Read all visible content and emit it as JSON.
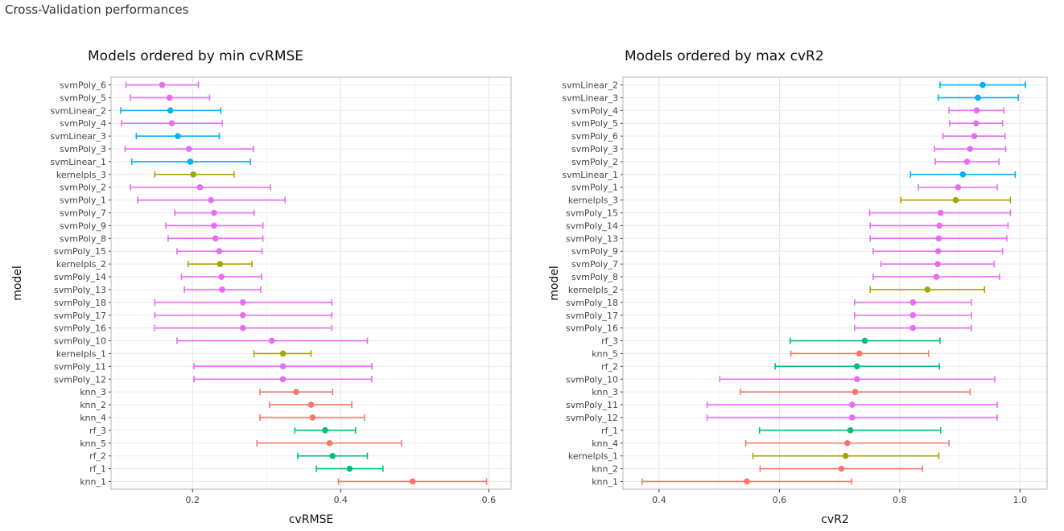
{
  "page": {
    "title": "Cross-Validation performances"
  },
  "chart_data": [
    {
      "type": "errorbar",
      "title": "Models ordered by min cvRMSE",
      "xlabel": "cvRMSE",
      "ylabel": "model",
      "xlim": [
        0.09,
        0.63
      ],
      "xticks": [
        0.2,
        0.4,
        0.6
      ],
      "grid": true,
      "legend": "none",
      "group_colors": {
        "svmPoly": "#E76BF3",
        "svmLinear": "#00B0F6",
        "kernelpls": "#A3A500",
        "rf": "#00BF7D",
        "knn": "#F8766D"
      },
      "points": [
        {
          "model": "svmPoly_6",
          "group": "svmPoly",
          "value": 0.159,
          "low": 0.11,
          "high": 0.208
        },
        {
          "model": "svmPoly_5",
          "group": "svmPoly",
          "value": 0.169,
          "low": 0.116,
          "high": 0.223
        },
        {
          "model": "svmLinear_2",
          "group": "svmLinear",
          "value": 0.17,
          "low": 0.103,
          "high": 0.238
        },
        {
          "model": "svmPoly_4",
          "group": "svmPoly",
          "value": 0.172,
          "low": 0.104,
          "high": 0.24
        },
        {
          "model": "svmLinear_3",
          "group": "svmLinear",
          "value": 0.18,
          "low": 0.124,
          "high": 0.236
        },
        {
          "model": "svmPoly_3",
          "group": "svmPoly",
          "value": 0.195,
          "low": 0.109,
          "high": 0.282
        },
        {
          "model": "svmLinear_1",
          "group": "svmLinear",
          "value": 0.197,
          "low": 0.118,
          "high": 0.278
        },
        {
          "model": "kernelpls_3",
          "group": "kernelpls",
          "value": 0.201,
          "low": 0.149,
          "high": 0.256
        },
        {
          "model": "svmPoly_2",
          "group": "svmPoly",
          "value": 0.21,
          "low": 0.116,
          "high": 0.305
        },
        {
          "model": "svmPoly_1",
          "group": "svmPoly",
          "value": 0.225,
          "low": 0.126,
          "high": 0.325
        },
        {
          "model": "svmPoly_7",
          "group": "svmPoly",
          "value": 0.229,
          "low": 0.176,
          "high": 0.283
        },
        {
          "model": "svmPoly_9",
          "group": "svmPoly",
          "value": 0.229,
          "low": 0.164,
          "high": 0.295
        },
        {
          "model": "svmPoly_8",
          "group": "svmPoly",
          "value": 0.231,
          "low": 0.167,
          "high": 0.295
        },
        {
          "model": "svmPoly_15",
          "group": "svmPoly",
          "value": 0.236,
          "low": 0.179,
          "high": 0.294
        },
        {
          "model": "kernelpls_2",
          "group": "kernelpls",
          "value": 0.237,
          "low": 0.194,
          "high": 0.28
        },
        {
          "model": "svmPoly_14",
          "group": "svmPoly",
          "value": 0.239,
          "low": 0.185,
          "high": 0.293
        },
        {
          "model": "svmPoly_13",
          "group": "svmPoly",
          "value": 0.24,
          "low": 0.189,
          "high": 0.292
        },
        {
          "model": "svmPoly_18",
          "group": "svmPoly",
          "value": 0.268,
          "low": 0.149,
          "high": 0.388
        },
        {
          "model": "svmPoly_17",
          "group": "svmPoly",
          "value": 0.268,
          "low": 0.149,
          "high": 0.388
        },
        {
          "model": "svmPoly_16",
          "group": "svmPoly",
          "value": 0.268,
          "low": 0.149,
          "high": 0.388
        },
        {
          "model": "svmPoly_10",
          "group": "svmPoly",
          "value": 0.307,
          "low": 0.179,
          "high": 0.436
        },
        {
          "model": "kernelpls_1",
          "group": "kernelpls",
          "value": 0.322,
          "low": 0.283,
          "high": 0.36
        },
        {
          "model": "svmPoly_11",
          "group": "svmPoly",
          "value": 0.322,
          "low": 0.202,
          "high": 0.442
        },
        {
          "model": "svmPoly_12",
          "group": "svmPoly",
          "value": 0.322,
          "low": 0.202,
          "high": 0.442
        },
        {
          "model": "knn_3",
          "group": "knn",
          "value": 0.34,
          "low": 0.291,
          "high": 0.389
        },
        {
          "model": "knn_2",
          "group": "knn",
          "value": 0.36,
          "low": 0.304,
          "high": 0.415
        },
        {
          "model": "knn_4",
          "group": "knn",
          "value": 0.362,
          "low": 0.291,
          "high": 0.432
        },
        {
          "model": "rf_3",
          "group": "rf",
          "value": 0.379,
          "low": 0.338,
          "high": 0.42
        },
        {
          "model": "knn_5",
          "group": "knn",
          "value": 0.385,
          "low": 0.287,
          "high": 0.482
        },
        {
          "model": "rf_2",
          "group": "rf",
          "value": 0.389,
          "low": 0.342,
          "high": 0.436
        },
        {
          "model": "rf_1",
          "group": "rf",
          "value": 0.412,
          "low": 0.367,
          "high": 0.457
        },
        {
          "model": "knn_1",
          "group": "knn",
          "value": 0.497,
          "low": 0.397,
          "high": 0.597
        }
      ]
    },
    {
      "type": "errorbar",
      "title": "Models ordered by max cvR2",
      "xlabel": "cvR2",
      "ylabel": "model",
      "xlim": [
        0.34,
        1.045
      ],
      "xticks": [
        0.4,
        0.6,
        0.8,
        1.0
      ],
      "grid": true,
      "legend": "none",
      "group_colors": {
        "svmPoly": "#E76BF3",
        "svmLinear": "#00B0F6",
        "kernelpls": "#A3A500",
        "rf": "#00BF7D",
        "knn": "#F8766D"
      },
      "points": [
        {
          "model": "svmLinear_2",
          "group": "svmLinear",
          "value": 0.938,
          "low": 0.867,
          "high": 1.009
        },
        {
          "model": "svmLinear_3",
          "group": "svmLinear",
          "value": 0.93,
          "low": 0.864,
          "high": 0.997
        },
        {
          "model": "svmPoly_4",
          "group": "svmPoly",
          "value": 0.928,
          "low": 0.882,
          "high": 0.973
        },
        {
          "model": "svmPoly_5",
          "group": "svmPoly",
          "value": 0.927,
          "low": 0.883,
          "high": 0.971
        },
        {
          "model": "svmPoly_6",
          "group": "svmPoly",
          "value": 0.924,
          "low": 0.872,
          "high": 0.975
        },
        {
          "model": "svmPoly_3",
          "group": "svmPoly",
          "value": 0.917,
          "low": 0.858,
          "high": 0.976
        },
        {
          "model": "svmPoly_2",
          "group": "svmPoly",
          "value": 0.912,
          "low": 0.859,
          "high": 0.965
        },
        {
          "model": "svmLinear_1",
          "group": "svmLinear",
          "value": 0.905,
          "low": 0.818,
          "high": 0.992
        },
        {
          "model": "svmPoly_1",
          "group": "svmPoly",
          "value": 0.897,
          "low": 0.831,
          "high": 0.962
        },
        {
          "model": "kernelpls_3",
          "group": "kernelpls",
          "value": 0.893,
          "low": 0.802,
          "high": 0.984
        },
        {
          "model": "svmPoly_15",
          "group": "svmPoly",
          "value": 0.868,
          "low": 0.75,
          "high": 0.984
        },
        {
          "model": "svmPoly_14",
          "group": "svmPoly",
          "value": 0.866,
          "low": 0.751,
          "high": 0.98
        },
        {
          "model": "svmPoly_13",
          "group": "svmPoly",
          "value": 0.865,
          "low": 0.751,
          "high": 0.978
        },
        {
          "model": "svmPoly_9",
          "group": "svmPoly",
          "value": 0.864,
          "low": 0.756,
          "high": 0.971
        },
        {
          "model": "svmPoly_7",
          "group": "svmPoly",
          "value": 0.863,
          "low": 0.769,
          "high": 0.957
        },
        {
          "model": "svmPoly_8",
          "group": "svmPoly",
          "value": 0.861,
          "low": 0.756,
          "high": 0.966
        },
        {
          "model": "kernelpls_2",
          "group": "kernelpls",
          "value": 0.846,
          "low": 0.751,
          "high": 0.941
        },
        {
          "model": "svmPoly_18",
          "group": "svmPoly",
          "value": 0.822,
          "low": 0.725,
          "high": 0.919
        },
        {
          "model": "svmPoly_17",
          "group": "svmPoly",
          "value": 0.822,
          "low": 0.725,
          "high": 0.919
        },
        {
          "model": "svmPoly_16",
          "group": "svmPoly",
          "value": 0.822,
          "low": 0.725,
          "high": 0.919
        },
        {
          "model": "rf_3",
          "group": "rf",
          "value": 0.742,
          "low": 0.618,
          "high": 0.867
        },
        {
          "model": "knn_5",
          "group": "knn",
          "value": 0.733,
          "low": 0.619,
          "high": 0.848
        },
        {
          "model": "rf_2",
          "group": "rf",
          "value": 0.729,
          "low": 0.593,
          "high": 0.866
        },
        {
          "model": "svmPoly_10",
          "group": "svmPoly",
          "value": 0.729,
          "low": 0.501,
          "high": 0.958
        },
        {
          "model": "knn_3",
          "group": "knn",
          "value": 0.726,
          "low": 0.535,
          "high": 0.917
        },
        {
          "model": "svmPoly_11",
          "group": "svmPoly",
          "value": 0.721,
          "low": 0.48,
          "high": 0.962
        },
        {
          "model": "svmPoly_12",
          "group": "svmPoly",
          "value": 0.721,
          "low": 0.48,
          "high": 0.962
        },
        {
          "model": "rf_1",
          "group": "rf",
          "value": 0.718,
          "low": 0.567,
          "high": 0.868
        },
        {
          "model": "knn_4",
          "group": "knn",
          "value": 0.713,
          "low": 0.544,
          "high": 0.882
        },
        {
          "model": "kernelpls_1",
          "group": "kernelpls",
          "value": 0.71,
          "low": 0.556,
          "high": 0.865
        },
        {
          "model": "knn_2",
          "group": "knn",
          "value": 0.703,
          "low": 0.568,
          "high": 0.838
        },
        {
          "model": "knn_1",
          "group": "knn",
          "value": 0.546,
          "low": 0.372,
          "high": 0.72
        }
      ]
    }
  ]
}
